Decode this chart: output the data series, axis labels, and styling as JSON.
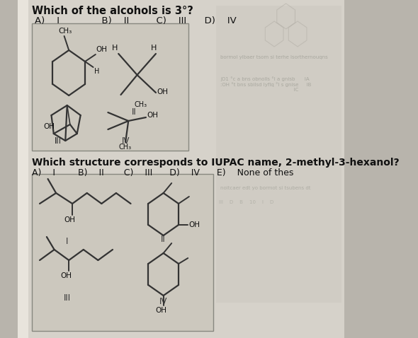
{
  "fig_width": 5.9,
  "fig_height": 4.78,
  "dpi": 100,
  "bg_color": "#c8c8c8",
  "page_color": "#d8d4cc",
  "box_color": "#ccc9c0",
  "q1_title": "Which of the alcohols is 3°?",
  "q1_options": "A)    I            B)    II        C)    III      D)    IV",
  "q2_title": "Which structure corresponds to IUPAC name, 2-methyl-3-hexanol?",
  "q2_options": "A)    I        B)    II       C)    III      D)    IV      E)    None of thes"
}
